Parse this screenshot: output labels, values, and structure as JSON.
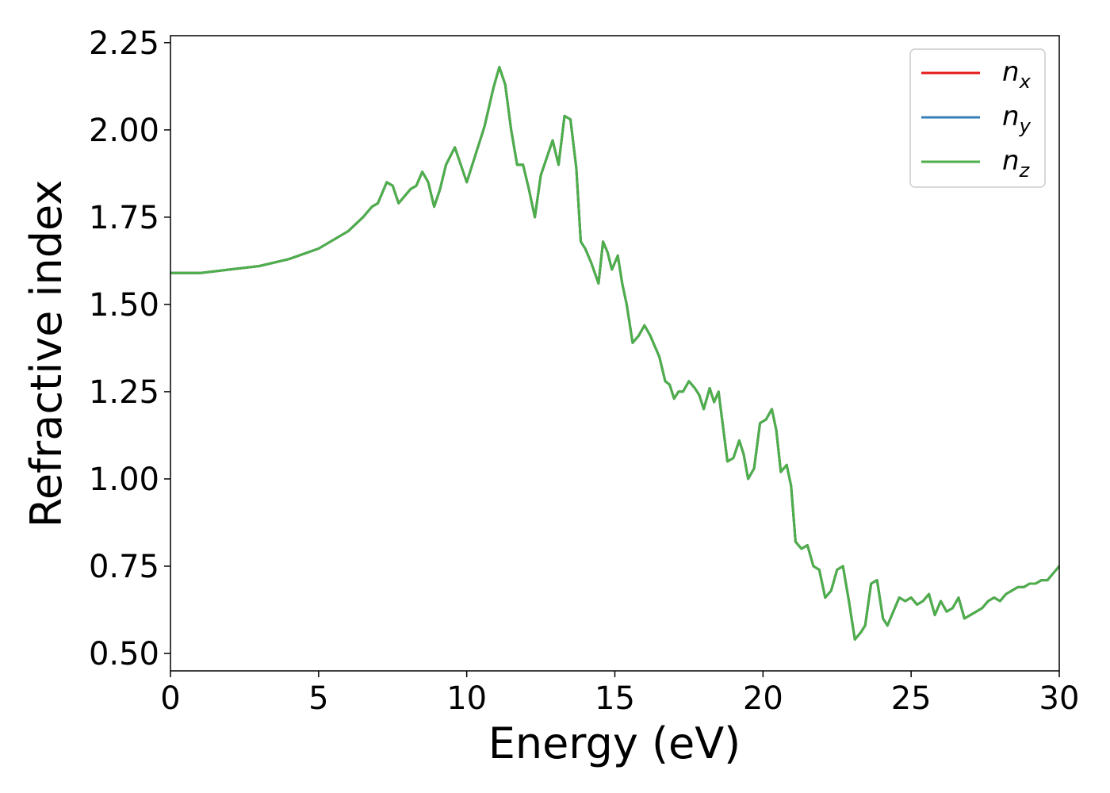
{
  "chart_data": {
    "type": "line",
    "xlabel": "Energy (eV)",
    "ylabel": "Refractive index",
    "xlim": [
      0,
      30
    ],
    "ylim": [
      0.45,
      2.27
    ],
    "xticks": [
      "0",
      "5",
      "10",
      "15",
      "20",
      "25",
      "30"
    ],
    "yticks": [
      "0.50",
      "0.75",
      "1.00",
      "1.25",
      "1.50",
      "1.75",
      "2.00",
      "2.25"
    ],
    "grid": false,
    "legend_position": "top-right",
    "series": [
      {
        "name": "n_x",
        "label_base": "n",
        "label_sub": "x",
        "color": "#e41a1c",
        "x": [
          0,
          1,
          2,
          3,
          4,
          5,
          6,
          6.5,
          6.8,
          7.0,
          7.3,
          7.5,
          7.7,
          7.9,
          8.1,
          8.3,
          8.5,
          8.7,
          8.9,
          9.1,
          9.3,
          9.6,
          9.8,
          10.0,
          10.3,
          10.6,
          10.9,
          11.1,
          11.3,
          11.5,
          11.7,
          11.9,
          12.1,
          12.3,
          12.5,
          12.7,
          12.9,
          13.1,
          13.3,
          13.5,
          13.7,
          13.85,
          14.0,
          14.2,
          14.45,
          14.6,
          14.75,
          14.9,
          15.1,
          15.25,
          15.4,
          15.6,
          15.8,
          16.0,
          16.2,
          16.35,
          16.5,
          16.7,
          16.85,
          17.0,
          17.15,
          17.3,
          17.5,
          17.7,
          17.85,
          18.0,
          18.2,
          18.35,
          18.5,
          18.65,
          18.8,
          19.0,
          19.2,
          19.35,
          19.5,
          19.7,
          19.9,
          20.1,
          20.3,
          20.45,
          20.6,
          20.8,
          20.95,
          21.1,
          21.3,
          21.5,
          21.7,
          21.9,
          22.1,
          22.3,
          22.5,
          22.7,
          22.9,
          23.1,
          23.3,
          23.45,
          23.65,
          23.85,
          24.05,
          24.2,
          24.4,
          24.6,
          24.8,
          25.0,
          25.2,
          25.4,
          25.6,
          25.8,
          26.0,
          26.2,
          26.4,
          26.6,
          26.8,
          27.0,
          27.2,
          27.4,
          27.6,
          27.8,
          28.0,
          28.2,
          28.4,
          28.6,
          28.8,
          29.0,
          29.2,
          29.4,
          29.6,
          29.8,
          30.0
        ],
        "y": [
          1.59,
          1.59,
          1.6,
          1.61,
          1.63,
          1.66,
          1.71,
          1.75,
          1.78,
          1.79,
          1.85,
          1.84,
          1.79,
          1.81,
          1.83,
          1.84,
          1.88,
          1.85,
          1.78,
          1.83,
          1.9,
          1.95,
          1.9,
          1.85,
          1.93,
          2.01,
          2.12,
          2.18,
          2.13,
          2.0,
          1.9,
          1.9,
          1.83,
          1.75,
          1.87,
          1.92,
          1.97,
          1.9,
          2.04,
          2.03,
          1.89,
          1.68,
          1.66,
          1.62,
          1.56,
          1.68,
          1.65,
          1.6,
          1.64,
          1.56,
          1.5,
          1.39,
          1.41,
          1.44,
          1.41,
          1.38,
          1.35,
          1.28,
          1.27,
          1.23,
          1.25,
          1.25,
          1.28,
          1.26,
          1.24,
          1.2,
          1.26,
          1.22,
          1.25,
          1.15,
          1.05,
          1.06,
          1.11,
          1.07,
          1.0,
          1.03,
          1.16,
          1.17,
          1.2,
          1.14,
          1.02,
          1.04,
          0.98,
          0.82,
          0.8,
          0.81,
          0.75,
          0.74,
          0.66,
          0.68,
          0.74,
          0.75,
          0.65,
          0.54,
          0.56,
          0.58,
          0.7,
          0.71,
          0.6,
          0.58,
          0.62,
          0.66,
          0.65,
          0.66,
          0.64,
          0.65,
          0.67,
          0.61,
          0.65,
          0.62,
          0.63,
          0.66,
          0.6,
          0.61,
          0.62,
          0.63,
          0.65,
          0.66,
          0.65,
          0.67,
          0.68,
          0.69,
          0.69,
          0.7,
          0.7,
          0.71,
          0.71,
          0.73,
          0.75
        ]
      },
      {
        "name": "n_y",
        "label_base": "n",
        "label_sub": "y",
        "color": "#377eb8",
        "x": [
          0,
          1,
          2,
          3,
          4,
          5,
          6,
          6.5,
          6.8,
          7.0,
          7.3,
          7.5,
          7.7,
          7.9,
          8.1,
          8.3,
          8.5,
          8.7,
          8.9,
          9.1,
          9.3,
          9.6,
          9.8,
          10.0,
          10.3,
          10.6,
          10.9,
          11.1,
          11.3,
          11.5,
          11.7,
          11.9,
          12.1,
          12.3,
          12.5,
          12.7,
          12.9,
          13.1,
          13.3,
          13.5,
          13.7,
          13.85,
          14.0,
          14.2,
          14.45,
          14.6,
          14.75,
          14.9,
          15.1,
          15.25,
          15.4,
          15.6,
          15.8,
          16.0,
          16.2,
          16.35,
          16.5,
          16.7,
          16.85,
          17.0,
          17.15,
          17.3,
          17.5,
          17.7,
          17.85,
          18.0,
          18.2,
          18.35,
          18.5,
          18.65,
          18.8,
          19.0,
          19.2,
          19.35,
          19.5,
          19.7,
          19.9,
          20.1,
          20.3,
          20.45,
          20.6,
          20.8,
          20.95,
          21.1,
          21.3,
          21.5,
          21.7,
          21.9,
          22.1,
          22.3,
          22.5,
          22.7,
          22.9,
          23.1,
          23.3,
          23.45,
          23.65,
          23.85,
          24.05,
          24.2,
          24.4,
          24.6,
          24.8,
          25.0,
          25.2,
          25.4,
          25.6,
          25.8,
          26.0,
          26.2,
          26.4,
          26.6,
          26.8,
          27.0,
          27.2,
          27.4,
          27.6,
          27.8,
          28.0,
          28.2,
          28.4,
          28.6,
          28.8,
          29.0,
          29.2,
          29.4,
          29.6,
          29.8,
          30.0
        ],
        "y": [
          1.59,
          1.59,
          1.6,
          1.61,
          1.63,
          1.66,
          1.71,
          1.75,
          1.78,
          1.79,
          1.85,
          1.84,
          1.79,
          1.81,
          1.83,
          1.84,
          1.88,
          1.85,
          1.78,
          1.83,
          1.9,
          1.95,
          1.9,
          1.85,
          1.93,
          2.01,
          2.12,
          2.18,
          2.13,
          2.0,
          1.9,
          1.9,
          1.83,
          1.75,
          1.87,
          1.92,
          1.97,
          1.9,
          2.04,
          2.03,
          1.89,
          1.68,
          1.66,
          1.62,
          1.56,
          1.68,
          1.65,
          1.6,
          1.64,
          1.56,
          1.5,
          1.39,
          1.41,
          1.44,
          1.41,
          1.38,
          1.35,
          1.28,
          1.27,
          1.23,
          1.25,
          1.25,
          1.28,
          1.26,
          1.24,
          1.2,
          1.26,
          1.22,
          1.25,
          1.15,
          1.05,
          1.06,
          1.11,
          1.07,
          1.0,
          1.03,
          1.16,
          1.17,
          1.2,
          1.14,
          1.02,
          1.04,
          0.98,
          0.82,
          0.8,
          0.81,
          0.75,
          0.74,
          0.66,
          0.68,
          0.74,
          0.75,
          0.65,
          0.54,
          0.56,
          0.58,
          0.7,
          0.71,
          0.6,
          0.58,
          0.62,
          0.66,
          0.65,
          0.66,
          0.64,
          0.65,
          0.67,
          0.61,
          0.65,
          0.62,
          0.63,
          0.66,
          0.6,
          0.61,
          0.62,
          0.63,
          0.65,
          0.66,
          0.65,
          0.67,
          0.68,
          0.69,
          0.69,
          0.7,
          0.7,
          0.71,
          0.71,
          0.73,
          0.75
        ]
      },
      {
        "name": "n_z",
        "label_base": "n",
        "label_sub": "z",
        "color": "#4daf4a",
        "x": [
          0,
          1,
          2,
          3,
          4,
          5,
          6,
          6.5,
          6.8,
          7.0,
          7.3,
          7.5,
          7.7,
          7.9,
          8.1,
          8.3,
          8.5,
          8.7,
          8.9,
          9.1,
          9.3,
          9.6,
          9.8,
          10.0,
          10.3,
          10.6,
          10.9,
          11.1,
          11.3,
          11.5,
          11.7,
          11.9,
          12.1,
          12.3,
          12.5,
          12.7,
          12.9,
          13.1,
          13.3,
          13.5,
          13.7,
          13.85,
          14.0,
          14.2,
          14.45,
          14.6,
          14.75,
          14.9,
          15.1,
          15.25,
          15.4,
          15.6,
          15.8,
          16.0,
          16.2,
          16.35,
          16.5,
          16.7,
          16.85,
          17.0,
          17.15,
          17.3,
          17.5,
          17.7,
          17.85,
          18.0,
          18.2,
          18.35,
          18.5,
          18.65,
          18.8,
          19.0,
          19.2,
          19.35,
          19.5,
          19.7,
          19.9,
          20.1,
          20.3,
          20.45,
          20.6,
          20.8,
          20.95,
          21.1,
          21.3,
          21.5,
          21.7,
          21.9,
          22.1,
          22.3,
          22.5,
          22.7,
          22.9,
          23.1,
          23.3,
          23.45,
          23.65,
          23.85,
          24.05,
          24.2,
          24.4,
          24.6,
          24.8,
          25.0,
          25.2,
          25.4,
          25.6,
          25.8,
          26.0,
          26.2,
          26.4,
          26.6,
          26.8,
          27.0,
          27.2,
          27.4,
          27.6,
          27.8,
          28.0,
          28.2,
          28.4,
          28.6,
          28.8,
          29.0,
          29.2,
          29.4,
          29.6,
          29.8,
          30.0
        ],
        "y": [
          1.59,
          1.59,
          1.6,
          1.61,
          1.63,
          1.66,
          1.71,
          1.75,
          1.78,
          1.79,
          1.85,
          1.84,
          1.79,
          1.81,
          1.83,
          1.84,
          1.88,
          1.85,
          1.78,
          1.83,
          1.9,
          1.95,
          1.9,
          1.85,
          1.93,
          2.01,
          2.12,
          2.18,
          2.13,
          2.0,
          1.9,
          1.9,
          1.83,
          1.75,
          1.87,
          1.92,
          1.97,
          1.9,
          2.04,
          2.03,
          1.89,
          1.68,
          1.66,
          1.62,
          1.56,
          1.68,
          1.65,
          1.6,
          1.64,
          1.56,
          1.5,
          1.39,
          1.41,
          1.44,
          1.41,
          1.38,
          1.35,
          1.28,
          1.27,
          1.23,
          1.25,
          1.25,
          1.28,
          1.26,
          1.24,
          1.2,
          1.26,
          1.22,
          1.25,
          1.15,
          1.05,
          1.06,
          1.11,
          1.07,
          1.0,
          1.03,
          1.16,
          1.17,
          1.2,
          1.14,
          1.02,
          1.04,
          0.98,
          0.82,
          0.8,
          0.81,
          0.75,
          0.74,
          0.66,
          0.68,
          0.74,
          0.75,
          0.65,
          0.54,
          0.56,
          0.58,
          0.7,
          0.71,
          0.6,
          0.58,
          0.62,
          0.66,
          0.65,
          0.66,
          0.64,
          0.65,
          0.67,
          0.61,
          0.65,
          0.62,
          0.63,
          0.66,
          0.6,
          0.61,
          0.62,
          0.63,
          0.65,
          0.66,
          0.65,
          0.67,
          0.68,
          0.69,
          0.69,
          0.7,
          0.7,
          0.71,
          0.71,
          0.73,
          0.75
        ]
      }
    ]
  }
}
